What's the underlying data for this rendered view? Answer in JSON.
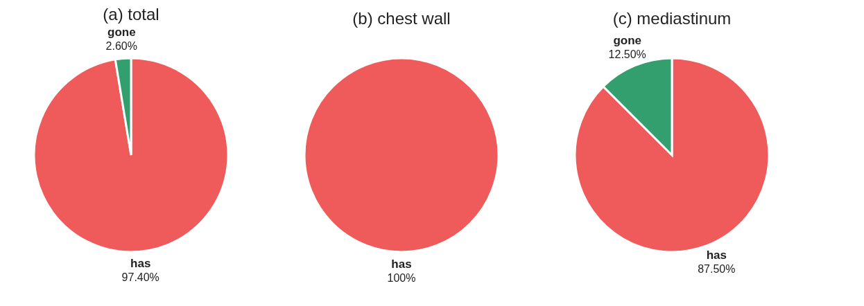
{
  "chart_data": [
    {
      "type": "pie",
      "title": "(a) total",
      "categories": [
        "has",
        "gone"
      ],
      "values": [
        97.4,
        2.6
      ],
      "colors": [
        "#ef5a5a",
        "#339e6e"
      ],
      "value_labels": [
        "97.40%",
        "2.60%"
      ]
    },
    {
      "type": "pie",
      "title": "(b) chest wall",
      "categories": [
        "has"
      ],
      "values": [
        100
      ],
      "colors": [
        "#ef5a5a"
      ],
      "value_labels": [
        "100%"
      ]
    },
    {
      "type": "pie",
      "title": "(c) mediastinum",
      "categories": [
        "has",
        "gone"
      ],
      "values": [
        87.5,
        12.5
      ],
      "colors": [
        "#ef5a5a",
        "#339e6e"
      ],
      "value_labels": [
        "87.50%",
        "12.50%"
      ]
    }
  ]
}
